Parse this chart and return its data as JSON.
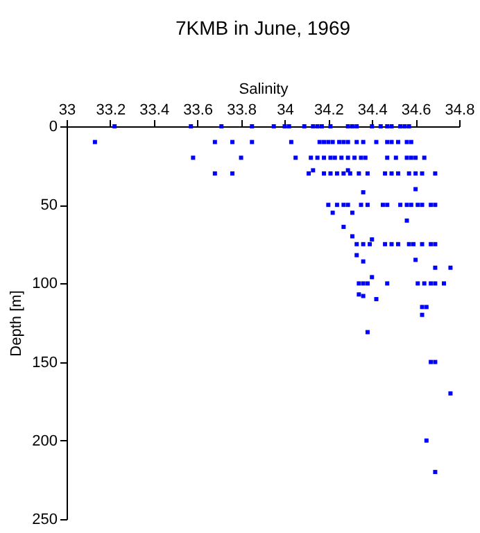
{
  "chart_data": {
    "type": "scatter",
    "title": "7KMB in June, 1969",
    "xlabel": "Salinity",
    "ylabel": "Depth [m]",
    "xlim": [
      33,
      34.8
    ],
    "xticks": [
      33,
      33.2,
      33.4,
      33.6,
      33.8,
      34,
      34.2,
      34.4,
      34.6,
      34.8
    ],
    "ylim": [
      250,
      0
    ],
    "yticks": [
      0,
      50,
      100,
      150,
      200,
      250
    ],
    "grid": false,
    "marker": "square",
    "series": [
      {
        "color": "#0000ff",
        "x": [
          33.22,
          33.57,
          33.71,
          33.85,
          33.95,
          34.0,
          34.02,
          34.09,
          34.13,
          34.15,
          34.17,
          34.21,
          34.29,
          34.31,
          34.33,
          34.4,
          34.44,
          34.47,
          34.49,
          34.53,
          34.55,
          34.57,
          33.13,
          33.68,
          33.76,
          33.85,
          34.03,
          34.16,
          34.18,
          34.2,
          34.22,
          34.25,
          34.27,
          34.29,
          34.33,
          34.36,
          34.42,
          34.47,
          34.49,
          34.52,
          34.56,
          34.58,
          33.58,
          33.8,
          34.05,
          34.12,
          34.15,
          34.18,
          34.21,
          34.23,
          34.26,
          34.29,
          34.32,
          34.35,
          34.37,
          34.47,
          34.51,
          34.56,
          34.58,
          34.6,
          34.64,
          33.68,
          33.76,
          34.11,
          34.13,
          34.18,
          34.21,
          34.24,
          34.27,
          34.29,
          34.3,
          34.34,
          34.38,
          34.46,
          34.49,
          34.52,
          34.57,
          34.6,
          34.63,
          34.69,
          34.6,
          34.36,
          34.2,
          34.24,
          34.27,
          34.29,
          34.35,
          34.38,
          34.45,
          34.47,
          34.53,
          34.56,
          34.58,
          34.61,
          34.63,
          34.67,
          34.69,
          34.22,
          34.31,
          34.56,
          34.27,
          34.31,
          34.4,
          34.33,
          34.36,
          34.39,
          34.46,
          34.49,
          34.52,
          34.57,
          34.59,
          34.63,
          34.67,
          34.69,
          34.33,
          34.6,
          34.36,
          34.69,
          34.76,
          34.4,
          34.34,
          34.36,
          34.38,
          34.47,
          34.61,
          34.64,
          34.67,
          34.69,
          34.73,
          34.34,
          34.36,
          34.42,
          34.63,
          34.65,
          34.63,
          34.38,
          34.67,
          34.69,
          34.76,
          34.65,
          34.69
        ],
        "values": [
          0,
          0,
          0,
          0,
          0,
          0,
          0,
          0,
          0,
          0,
          0,
          0,
          0,
          0,
          0,
          0,
          0,
          0,
          0,
          0,
          0,
          0,
          10,
          10,
          10,
          10,
          10,
          10,
          10,
          10,
          10,
          10,
          10,
          10,
          10,
          10,
          10,
          10,
          10,
          10,
          10,
          10,
          20,
          20,
          20,
          20,
          20,
          20,
          20,
          20,
          20,
          20,
          20,
          20,
          20,
          20,
          20,
          20,
          20,
          20,
          20,
          30,
          30,
          30,
          28,
          30,
          30,
          30,
          30,
          28,
          30,
          30,
          30,
          30,
          30,
          30,
          30,
          30,
          30,
          30,
          40,
          42,
          50,
          50,
          50,
          50,
          50,
          50,
          50,
          50,
          50,
          50,
          50,
          50,
          50,
          50,
          50,
          55,
          55,
          60,
          64,
          70,
          72,
          75,
          75,
          75,
          75,
          75,
          75,
          75,
          75,
          75,
          75,
          75,
          82,
          85,
          86,
          90,
          90,
          96,
          100,
          100,
          100,
          100,
          100,
          100,
          100,
          100,
          100,
          107,
          108,
          110,
          115,
          115,
          120,
          131,
          150,
          150,
          170,
          200,
          220
        ]
      }
    ]
  }
}
